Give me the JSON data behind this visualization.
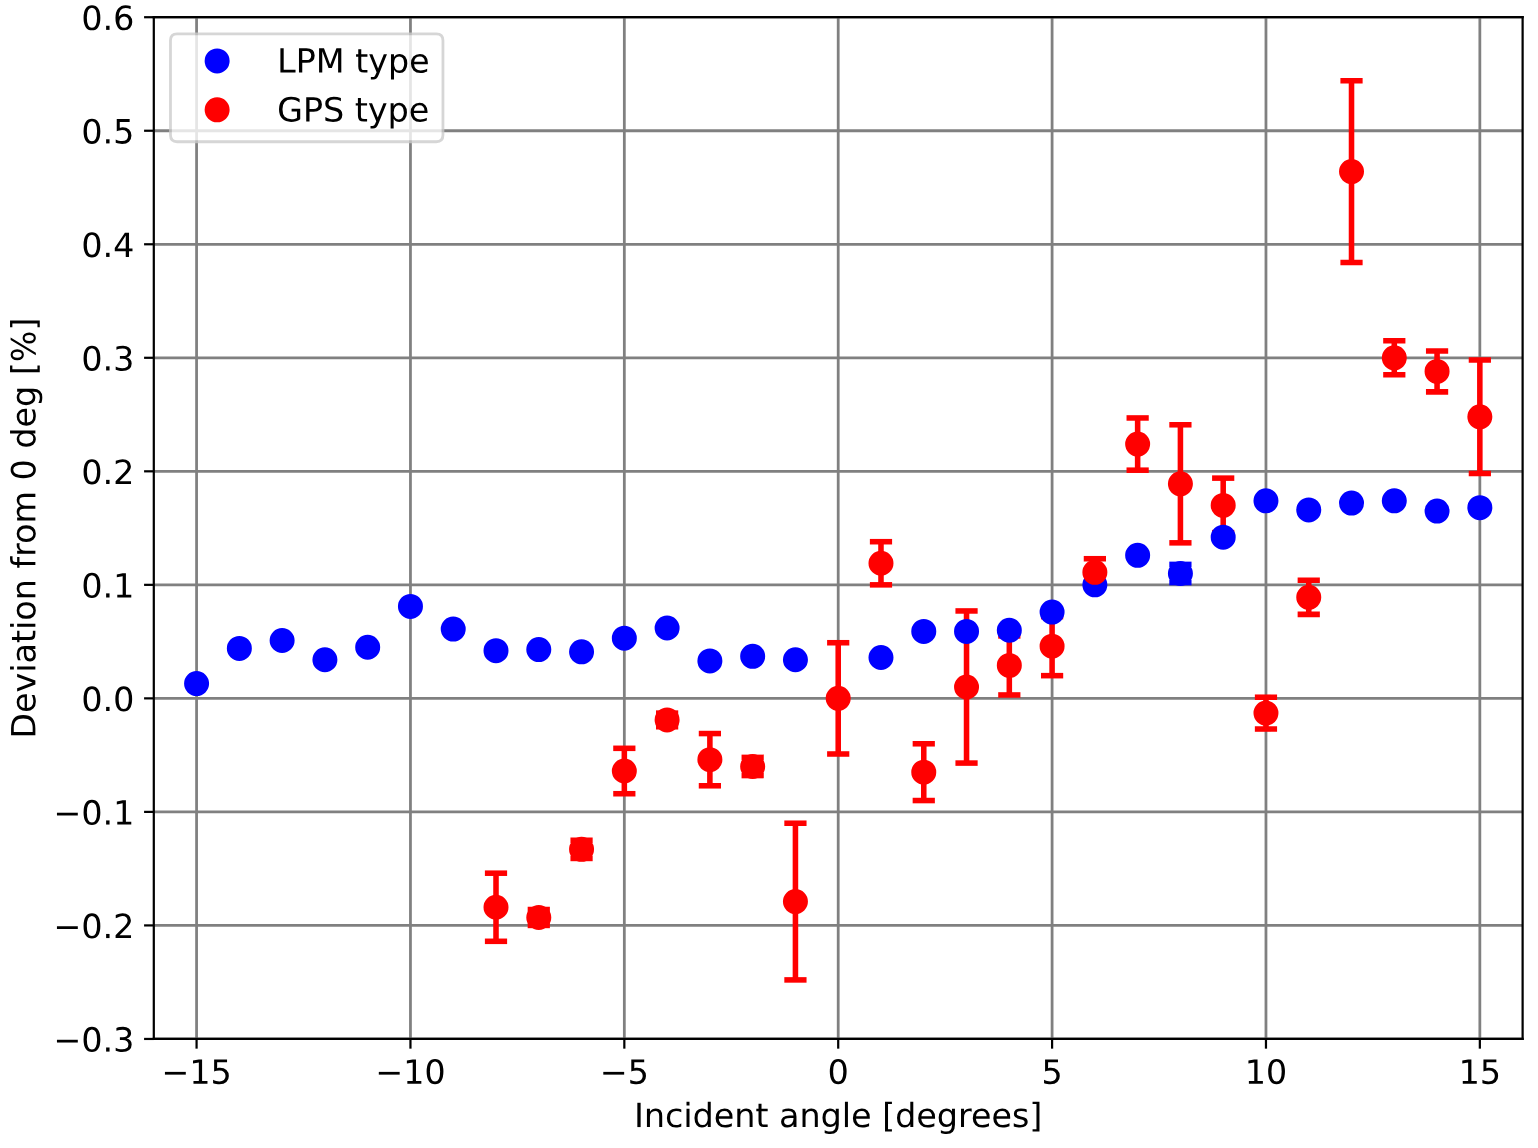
{
  "chart_data": {
    "type": "scatter",
    "xlabel": "Incident angle [degrees]",
    "ylabel": "Deviation from 0 deg [%]",
    "xlim": [
      -16,
      16
    ],
    "xticks": [
      {
        "value": -15,
        "label": "−15"
      },
      {
        "value": -10,
        "label": "−10"
      },
      {
        "value": -5,
        "label": "−5"
      },
      0,
      5,
      10,
      15
    ],
    "ylim": [
      -0.3,
      0.6
    ],
    "yticks": [
      {
        "value": -0.3,
        "label": "−0.3"
      },
      {
        "value": -0.2,
        "label": "−0.2"
      },
      {
        "value": -0.1,
        "label": "−0.1"
      },
      {
        "value": 0,
        "label": "0.0"
      },
      0.1,
      0.2,
      0.3,
      0.4,
      0.5,
      0.6
    ],
    "grid": true,
    "legend": "top left",
    "marker": "circle",
    "series": [
      {
        "name": "LPM type",
        "color": "#0000ff",
        "x": [
          -15,
          -14,
          -13,
          -12,
          -11,
          -10,
          -9,
          -8,
          -7,
          -6,
          -5,
          -4,
          -3,
          -2,
          -1,
          0,
          1,
          2,
          3,
          4,
          5,
          6,
          7,
          8,
          9,
          10,
          11,
          12,
          13,
          14,
          15
        ],
        "values": [
          0.013,
          0.044,
          0.051,
          0.034,
          0.045,
          0.081,
          0.061,
          0.042,
          0.043,
          0.041,
          0.053,
          0.062,
          0.033,
          0.037,
          0.034,
          null,
          0.036,
          0.059,
          0.059,
          0.06,
          0.076,
          0.1,
          0.126,
          0.11,
          0.142,
          0.174,
          0.166,
          0.172,
          0.174,
          0.165,
          0.168
        ],
        "errors": [
          null,
          null,
          null,
          null,
          null,
          null,
          null,
          null,
          null,
          null,
          null,
          null,
          null,
          null,
          null,
          null,
          null,
          null,
          null,
          null,
          null,
          null,
          null,
          0.008,
          null,
          null,
          null,
          null,
          null,
          null,
          null
        ]
      },
      {
        "name": "GPS type",
        "color": "#ff0000",
        "x": [
          -8,
          -7,
          -6,
          -5,
          -4,
          -3,
          -2,
          -1,
          0,
          1,
          2,
          3,
          4,
          5,
          6,
          7,
          8,
          9,
          10,
          11,
          12,
          13,
          14,
          15
        ],
        "values": [
          -0.184,
          -0.193,
          -0.133,
          -0.064,
          -0.019,
          -0.054,
          -0.06,
          -0.179,
          0.0,
          0.119,
          -0.065,
          0.01,
          0.029,
          0.046,
          0.111,
          0.224,
          0.189,
          0.17,
          -0.013,
          0.089,
          0.464,
          0.3,
          0.288,
          0.248
        ],
        "errors": [
          0.03,
          0.007,
          0.008,
          0.02,
          0.006,
          0.023,
          0.008,
          0.069,
          0.049,
          0.019,
          0.025,
          0.067,
          0.026,
          0.026,
          0.012,
          0.023,
          0.052,
          0.024,
          0.014,
          0.015,
          0.08,
          0.015,
          0.018,
          0.05
        ]
      }
    ]
  }
}
